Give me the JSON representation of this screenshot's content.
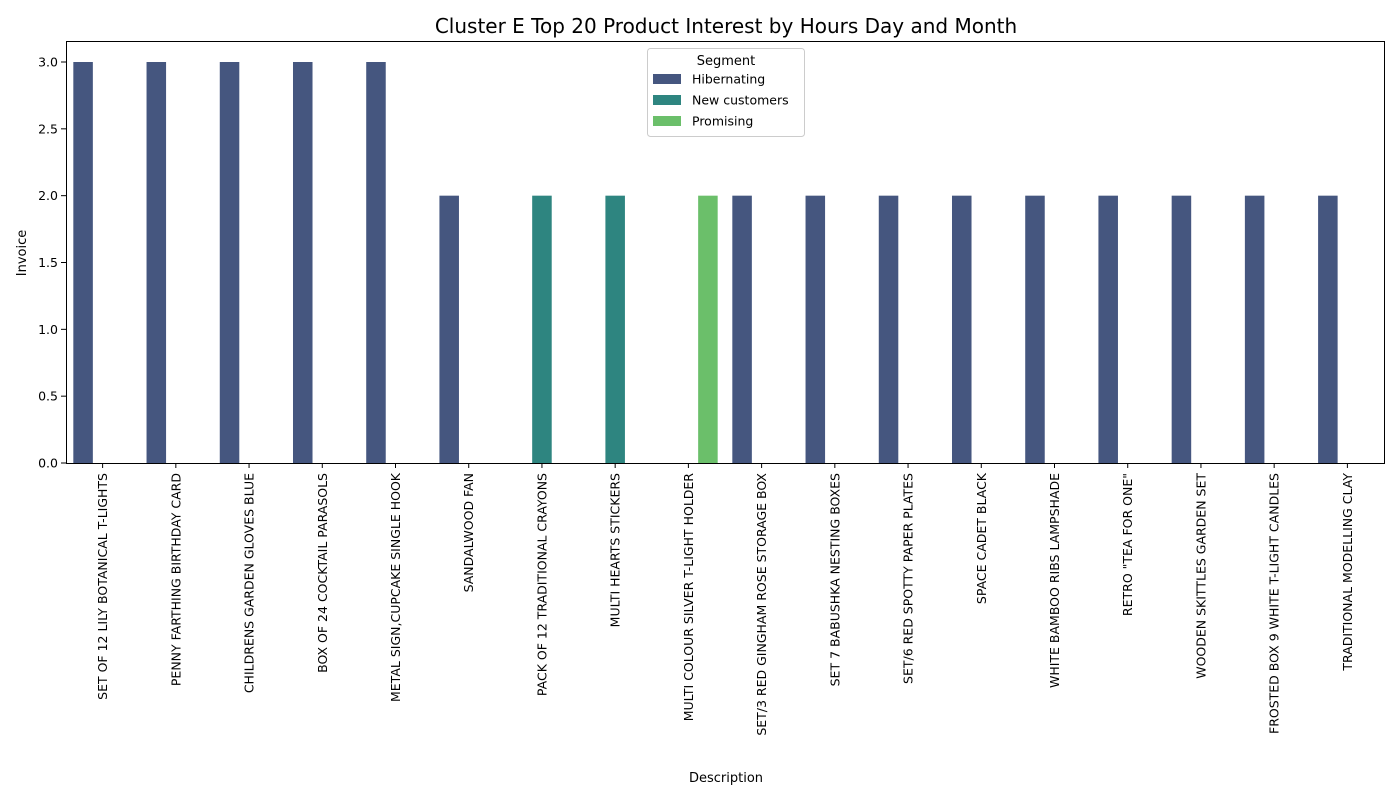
{
  "chart_data": {
    "type": "bar",
    "title": "Cluster E Top 20 Product Interest by Hours Day and Month",
    "xlabel": "Description",
    "ylabel": "Invoice",
    "ylim": [
      0,
      3.0
    ],
    "yticks": [
      "0.0",
      "0.5",
      "1.0",
      "1.5",
      "2.0",
      "2.5",
      "3.0"
    ],
    "grid": false,
    "categories": [
      "SET OF 12 LILY BOTANICAL T-LIGHTS",
      "PENNY FARTHING BIRTHDAY CARD",
      "CHILDRENS GARDEN GLOVES BLUE",
      "BOX OF 24 COCKTAIL PARASOLS",
      "METAL SIGN,CUPCAKE SINGLE HOOK",
      "SANDALWOOD FAN",
      "PACK OF 12 TRADITIONAL CRAYONS",
      "MULTI HEARTS  STICKERS",
      "MULTI COLOUR SILVER T-LIGHT HOLDER",
      "SET/3 RED GINGHAM ROSE STORAGE BOX",
      "SET 7 BABUSHKA NESTING BOXES",
      "SET/6 RED SPOTTY PAPER PLATES",
      "SPACE CADET BLACK",
      "WHITE BAMBOO RIBS LAMPSHADE",
      "RETRO \"TEA FOR ONE\"",
      "WOODEN SKITTLES GARDEN SET",
      "FROSTED BOX 9 WHITE T-LIGHT CANDLES",
      "TRADITIONAL MODELLING CLAY"
    ],
    "series": [
      {
        "name": "Hibernating",
        "color": "#45567f",
        "values": [
          3,
          3,
          3,
          3,
          3,
          2,
          null,
          null,
          null,
          2,
          2,
          2,
          2,
          2,
          2,
          2,
          2,
          2
        ]
      },
      {
        "name": "New customers",
        "color": "#2e8580",
        "values": [
          null,
          null,
          null,
          null,
          null,
          null,
          2,
          2,
          null,
          null,
          null,
          null,
          null,
          null,
          null,
          null,
          null,
          null
        ]
      },
      {
        "name": "Promising",
        "color": "#6bbf6a",
        "values": [
          null,
          null,
          null,
          null,
          null,
          null,
          null,
          null,
          2,
          null,
          null,
          null,
          null,
          null,
          null,
          null,
          null,
          null
        ]
      }
    ],
    "legend": {
      "title": "Segment",
      "placement": "top-center"
    }
  }
}
